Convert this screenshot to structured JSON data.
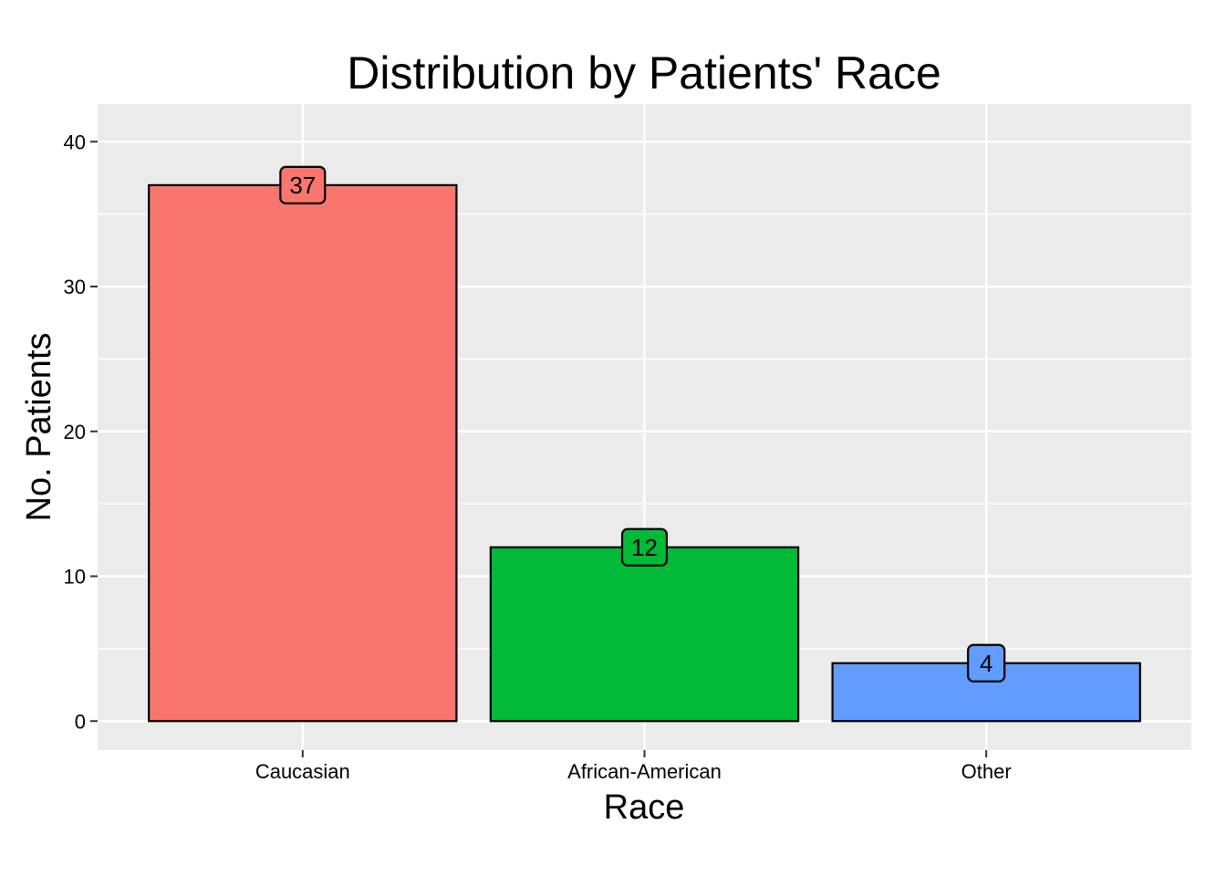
{
  "chart_data": {
    "type": "bar",
    "title": "Distribution by Patients' Race",
    "xlabel": "Race",
    "ylabel": "No. Patients",
    "categories": [
      "Caucasian",
      "African-American",
      "Other"
    ],
    "values": [
      37,
      12,
      4
    ],
    "data_labels": [
      "37",
      "12",
      "4"
    ],
    "colors": [
      "#F8766D",
      "#00BA38",
      "#619CFF"
    ],
    "ylim": [
      -2,
      42.6
    ],
    "yticks": [
      0,
      10,
      20,
      30,
      40
    ],
    "ytick_labels": [
      "0",
      "10",
      "20",
      "30",
      "40"
    ],
    "grid": true,
    "legend": "none",
    "panel_background": "#EBEBEB",
    "grid_color": "#FFFFFF",
    "bar_outline": "#000000"
  }
}
